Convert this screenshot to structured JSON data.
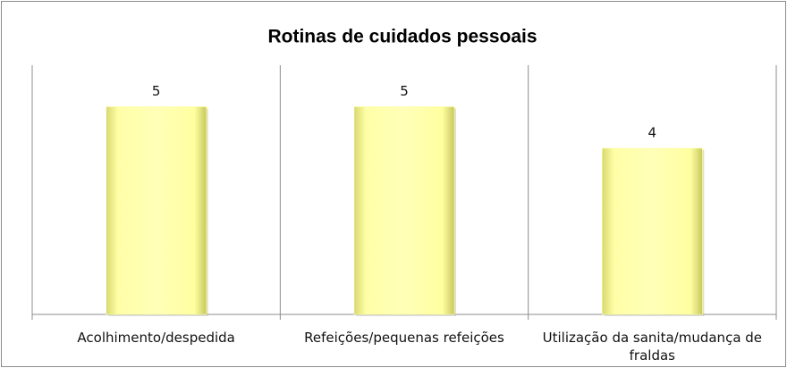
{
  "chart_data": {
    "type": "bar",
    "title": "Rotinas de cuidados pessoais",
    "categories": [
      "Acolhimento/despedida",
      "Refeições/pequenas refeições",
      "Utilização da sanita/mudança de fraldas"
    ],
    "values": [
      5,
      5,
      4
    ],
    "color": "#ffff99",
    "ylim": [
      0,
      6
    ]
  }
}
